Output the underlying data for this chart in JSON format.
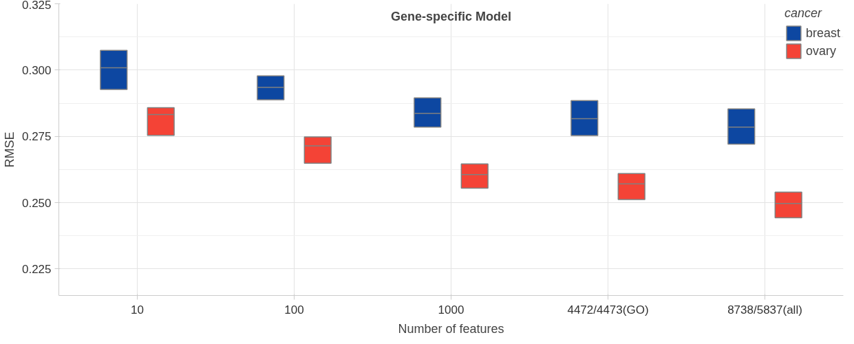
{
  "chart_data": {
    "type": "box",
    "title": "Gene-specific Model",
    "xlabel": "Number of features",
    "ylabel": "RMSE",
    "legend_title": "cancer",
    "categories": [
      "10",
      "100",
      "1000",
      "4472/4473(GO)",
      "8738/5837(all)"
    ],
    "series": [
      {
        "name": "breast",
        "color": "#0d47a1",
        "boxes": [
          {
            "low": 0.2927,
            "q1": 0.2927,
            "median": 0.3009,
            "q3": 0.3074,
            "high": 0.3074
          },
          {
            "low": 0.2888,
            "q1": 0.2888,
            "median": 0.2935,
            "q3": 0.2978,
            "high": 0.2978
          },
          {
            "low": 0.2785,
            "q1": 0.2785,
            "median": 0.2837,
            "q3": 0.2895,
            "high": 0.2895
          },
          {
            "low": 0.2753,
            "q1": 0.2753,
            "median": 0.2817,
            "q3": 0.2885,
            "high": 0.2885
          },
          {
            "low": 0.2721,
            "q1": 0.2721,
            "median": 0.2785,
            "q3": 0.2854,
            "high": 0.2854
          }
        ]
      },
      {
        "name": "ovary",
        "color": "#f44336",
        "boxes": [
          {
            "low": 0.2754,
            "q1": 0.2754,
            "median": 0.2832,
            "q3": 0.2858,
            "high": 0.2858
          },
          {
            "low": 0.2649,
            "q1": 0.2649,
            "median": 0.2714,
            "q3": 0.2748,
            "high": 0.2748
          },
          {
            "low": 0.2555,
            "q1": 0.2555,
            "median": 0.2606,
            "q3": 0.2646,
            "high": 0.2646
          },
          {
            "low": 0.2512,
            "q1": 0.2512,
            "median": 0.2571,
            "q3": 0.261,
            "high": 0.261
          },
          {
            "low": 0.2443,
            "q1": 0.2443,
            "median": 0.2497,
            "q3": 0.254,
            "high": 0.254
          }
        ]
      }
    ],
    "ylim": [
      0.215,
      0.325
    ],
    "yticks": [
      {
        "value": 0.225,
        "label": "0.225"
      },
      {
        "value": 0.25,
        "label": "0.250"
      },
      {
        "value": 0.275,
        "label": "0.275"
      },
      {
        "value": 0.3,
        "label": "0.300"
      },
      {
        "value": 0.325,
        "label": "0.325"
      }
    ],
    "grid": true,
    "legend": "top right"
  }
}
